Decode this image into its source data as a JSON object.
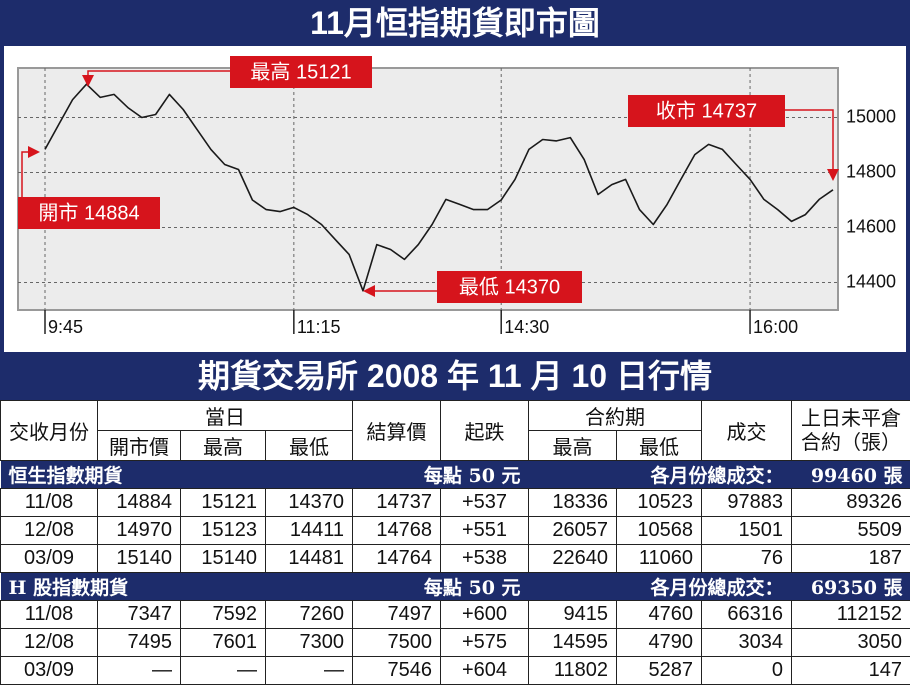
{
  "chart_data": {
    "type": "line",
    "title": "11月恒指期貨即市圖",
    "categories": [
      "9:45",
      null,
      null,
      null,
      null,
      null,
      null,
      null,
      null,
      null,
      null,
      null,
      null,
      null,
      null,
      null,
      null,
      null,
      "11:15",
      null,
      null,
      null,
      null,
      null,
      null,
      null,
      null,
      null,
      null,
      null,
      null,
      null,
      null,
      "14:30",
      null,
      null,
      null,
      null,
      null,
      null,
      null,
      null,
      null,
      null,
      null,
      null,
      null,
      null,
      null,
      null,
      null,
      "16:00",
      null,
      null,
      null,
      null,
      null,
      null
    ],
    "values": [
      14884,
      14975,
      15065,
      15121,
      15073,
      15084,
      15036,
      15000,
      15011,
      15084,
      15029,
      14956,
      14884,
      14829,
      14811,
      14700,
      14665,
      14658,
      14673,
      14647,
      14611,
      14556,
      14502,
      14370,
      14538,
      14520,
      14484,
      14538,
      14611,
      14702,
      14684,
      14665,
      14665,
      14700,
      14775,
      14884,
      14920,
      14915,
      14927,
      14847,
      14720,
      14756,
      14775,
      14665,
      14611,
      14684,
      14775,
      14865,
      14902,
      14884,
      14829,
      14775,
      14702,
      14665,
      14622,
      14647,
      14702,
      14737
    ],
    "color": "#1a1a1a",
    "ylim": [
      14300,
      15180
    ],
    "yticks": [
      14400,
      14600,
      14800,
      15000
    ],
    "grid": true,
    "annotations": [
      {
        "text": "最高 15121"
      },
      {
        "text": "收市 14737"
      },
      {
        "text": "開市 14884"
      },
      {
        "text": "最低 14370"
      }
    ]
  },
  "table": {
    "title": "期貨交易所 2008 年 11 月 10 日行情",
    "header": {
      "month": "交收月份",
      "day": "當日",
      "open": "開市價",
      "high": "最高",
      "low": "最低",
      "settle": "結算價",
      "change": "起跌",
      "contract": "合約期",
      "c_high": "最高",
      "c_low": "最低",
      "volume": "成交",
      "oi_1": "上日未平倉",
      "oi_2": "合約（張）"
    },
    "sections": [
      {
        "name": "恒生指數期貨",
        "per_point": "每點 50 元",
        "total_label": "各月份總成交：",
        "total": "99460 張",
        "rows": [
          [
            "11/08",
            "14884",
            "15121",
            "14370",
            "14737",
            "+537",
            "18336",
            "10523",
            "97883",
            "89326"
          ],
          [
            "12/08",
            "14970",
            "15123",
            "14411",
            "14768",
            "+551",
            "26057",
            "10568",
            "1501",
            "5509"
          ],
          [
            "03/09",
            "15140",
            "15140",
            "14481",
            "14764",
            "+538",
            "22640",
            "11060",
            "76",
            "187"
          ]
        ]
      },
      {
        "name": "H 股指數期貨",
        "per_point": "每點 50 元",
        "total_label": "各月份總成交：",
        "total": "69350 張",
        "rows": [
          [
            "11/08",
            "7347",
            "7592",
            "7260",
            "7497",
            "+600",
            "9415",
            "4760",
            "66316",
            "112152"
          ],
          [
            "12/08",
            "7495",
            "7601",
            "7300",
            "7500",
            "+575",
            "14595",
            "4790",
            "3034",
            "3050"
          ],
          [
            "03/09",
            "—",
            "—",
            "—",
            "7546",
            "+604",
            "11802",
            "5287",
            "0",
            "147"
          ]
        ]
      }
    ]
  }
}
